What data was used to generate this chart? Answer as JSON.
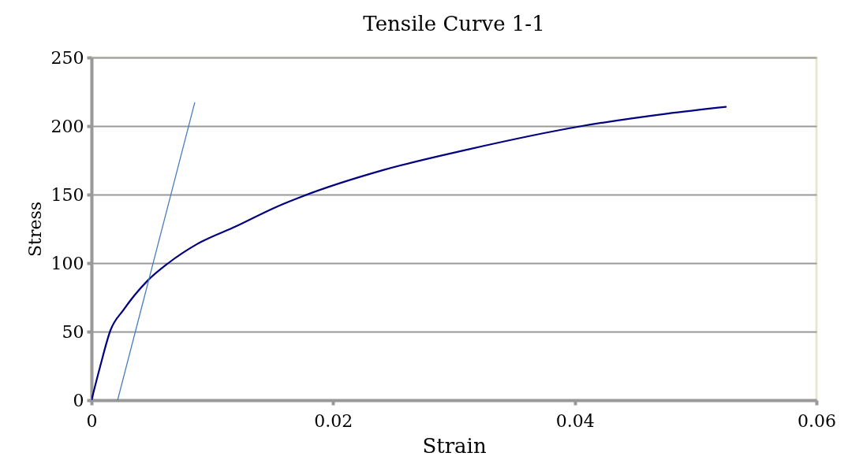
{
  "chart_data": {
    "type": "line",
    "title": "Tensile Curve 1-1",
    "xlabel": "Strain",
    "ylabel": "Stress",
    "series": [
      {
        "color": "#000080",
        "x": [
          0,
          0.0007,
          0.00157,
          0.00266,
          0.00462,
          0.00636,
          0.00876,
          0.012,
          0.0153,
          0.01725,
          0.0242,
          0.0312,
          0.0406,
          0.0476,
          0.0525
        ],
        "values": [
          0,
          24,
          51,
          66,
          87,
          100,
          114,
          127,
          141,
          148,
          168,
          183,
          200,
          209,
          214
        ]
      },
      {
        "color": "#4a7ebb",
        "x": [
          0.00216,
          0.00854
        ],
        "values": [
          0,
          217
        ]
      }
    ],
    "xlim": [
      0,
      0.06
    ],
    "xticks": [
      0,
      0.02,
      0.04,
      0.06
    ],
    "ylim": [
      0,
      250
    ],
    "yticks": [
      0,
      50,
      100,
      150,
      200,
      250
    ],
    "grid": "y",
    "marker": "none",
    "line_style": "solid"
  }
}
